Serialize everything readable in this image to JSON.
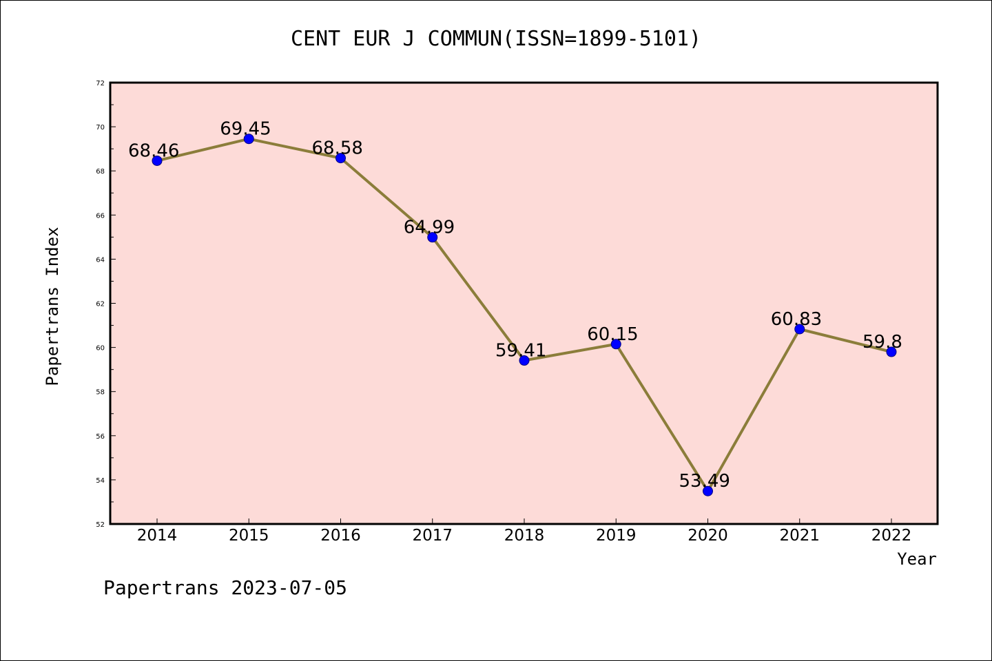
{
  "chart_data": {
    "type": "line",
    "title": "CENT EUR J COMMUN(ISSN=1899-5101)",
    "xlabel": "Year",
    "ylabel": "Papertrans Index",
    "categories": [
      "2014",
      "2015",
      "2016",
      "2017",
      "2018",
      "2019",
      "2020",
      "2021",
      "2022"
    ],
    "series": [
      {
        "values": [
          68.46,
          69.45,
          68.58,
          64.99,
          59.41,
          60.15,
          53.49,
          60.83,
          59.8
        ],
        "data_labels": [
          "68.46",
          "69.45",
          "68.58",
          "64.99",
          "59.41",
          "60.15",
          "53.49",
          "60.83",
          "59.8"
        ]
      }
    ],
    "ylim": [
      52,
      72
    ],
    "y_ticks": [
      "52",
      "54",
      "56",
      "58",
      "60",
      "62",
      "64",
      "66",
      "68",
      "70",
      "72"
    ],
    "grid": false,
    "colors": {
      "plot_background": "#fddbd8",
      "line": "#8b7d3a",
      "marker": "#0000ff",
      "marker_edge": "#000080"
    }
  },
  "footer": "Papertrans 2023-07-05"
}
